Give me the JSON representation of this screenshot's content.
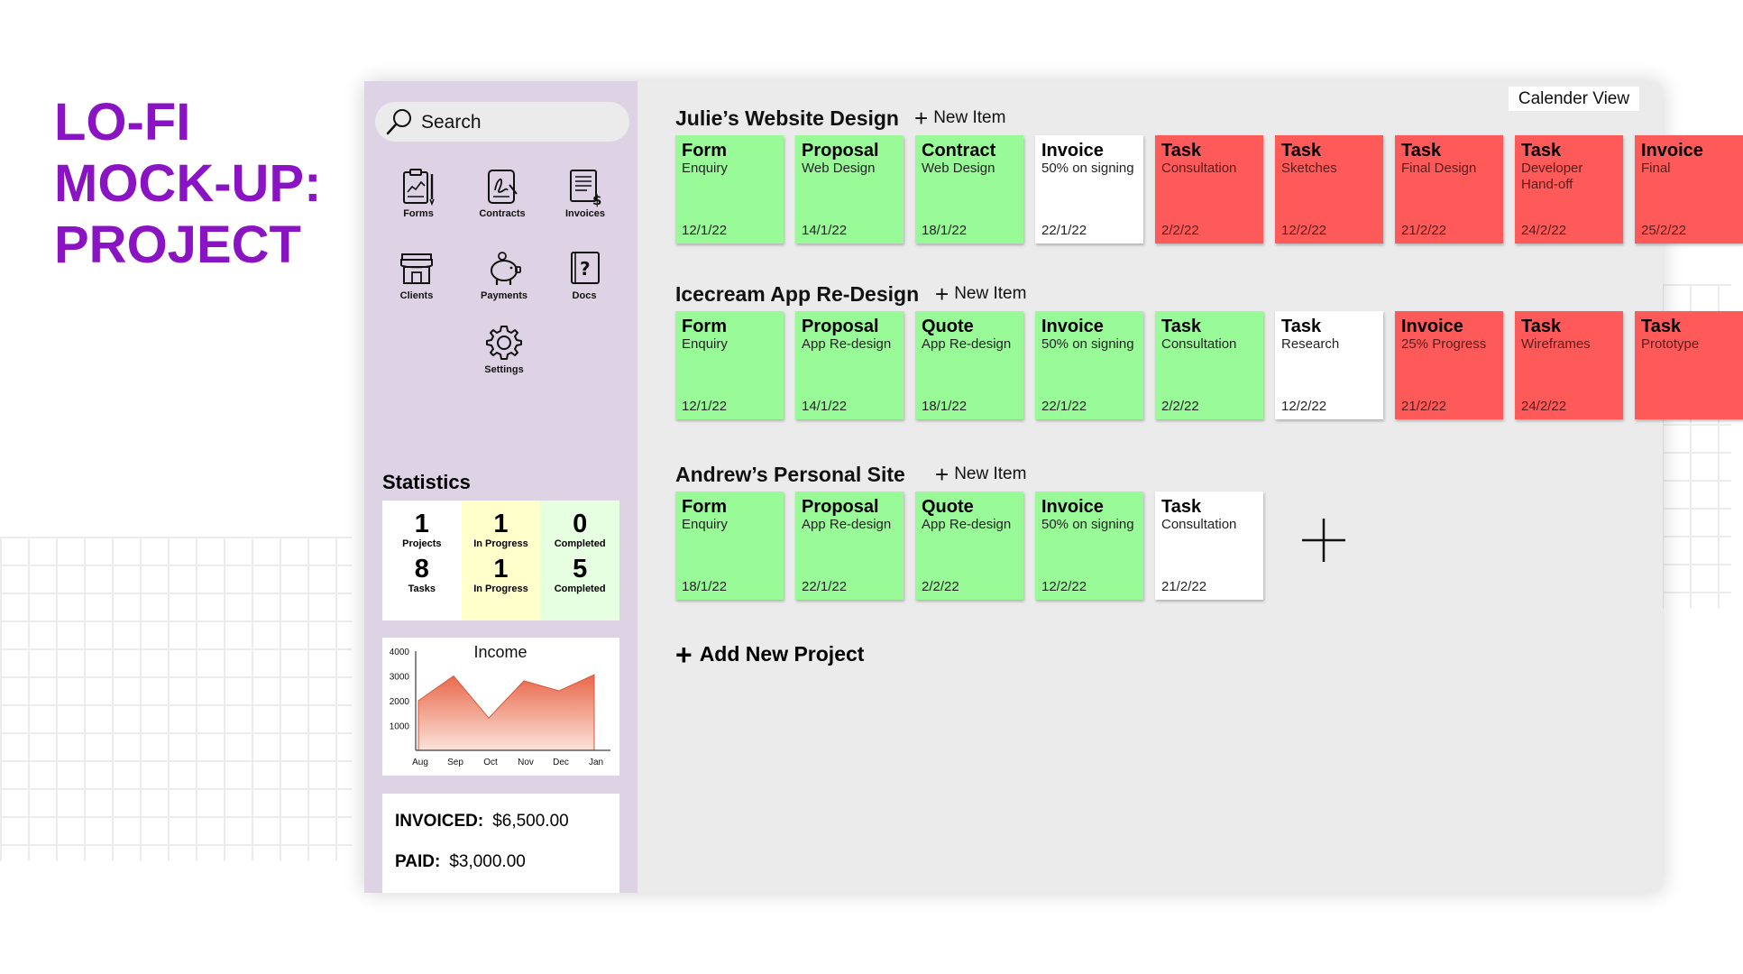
{
  "hero": {
    "line1": "LO-FI",
    "line2": "MOCK-UP:",
    "line3": "PROJECT"
  },
  "colors": {
    "brand": "#8a13c4",
    "sidebar": "#ddd3e5",
    "done": "#98fb98",
    "late": "#ff5a5a",
    "pending": "#ffffff"
  },
  "search": {
    "placeholder": "Search"
  },
  "nav": {
    "forms": "Forms",
    "contracts": "Contracts",
    "invoices": "Invoices",
    "clients": "Clients",
    "payments": "Payments",
    "docs": "Docs",
    "settings": "Settings"
  },
  "stats": {
    "title": "Statistics",
    "projects": {
      "value": "1",
      "label": "Projects"
    },
    "projects_in_progress": {
      "value": "1",
      "label": "In Progress"
    },
    "projects_completed": {
      "value": "0",
      "label": "Completed"
    },
    "tasks": {
      "value": "8",
      "label": "Tasks"
    },
    "tasks_in_progress": {
      "value": "1",
      "label": "In Progress"
    },
    "tasks_completed": {
      "value": "5",
      "label": "Completed"
    }
  },
  "chart_data": {
    "type": "area",
    "title": "Income",
    "categories": [
      "Aug",
      "Sep",
      "Oct",
      "Nov",
      "Dec",
      "Jan"
    ],
    "values": [
      2000,
      3000,
      1300,
      2800,
      2400,
      3050
    ],
    "yticks": [
      "4000",
      "3000",
      "2000",
      "1000"
    ],
    "ylim": [
      0,
      4000
    ],
    "xlabel": "",
    "ylabel": ""
  },
  "money": {
    "invoiced_label": "INVOICED:",
    "invoiced_value": "$6,500.00",
    "paid_label": "PAID:",
    "paid_value": "$3,000.00"
  },
  "calendar_view": "Calender View",
  "new_item_label": "New Item",
  "add_project_label": "Add New Project",
  "projects": [
    {
      "title": "Julie’s Website Design",
      "cards": [
        {
          "title": "Form",
          "sub": "Enquiry",
          "date": "12/1/22",
          "status": "green"
        },
        {
          "title": "Proposal",
          "sub": "Web Design",
          "date": "14/1/22",
          "status": "green"
        },
        {
          "title": "Contract",
          "sub": "Web Design",
          "date": "18/1/22",
          "status": "green"
        },
        {
          "title": "Invoice",
          "sub": "50% on signing",
          "date": "22/1/22",
          "status": "white"
        },
        {
          "title": "Task",
          "sub": "Consultation",
          "date": "2/2/22",
          "status": "red"
        },
        {
          "title": "Task",
          "sub": "Sketches",
          "date": "12/2/22",
          "status": "red"
        },
        {
          "title": "Task",
          "sub": "Final Design",
          "date": "21/2/22",
          "status": "red"
        },
        {
          "title": "Task",
          "sub": "Developer\nHand-off",
          "date": "24/2/22",
          "status": "red"
        },
        {
          "title": "Invoice",
          "sub": "Final",
          "date": "25/2/22",
          "status": "red"
        }
      ]
    },
    {
      "title": "Icecream App Re-Design",
      "cards": [
        {
          "title": "Form",
          "sub": "Enquiry",
          "date": "12/1/22",
          "status": "green"
        },
        {
          "title": "Proposal",
          "sub": "App Re-design",
          "date": "14/1/22",
          "status": "green"
        },
        {
          "title": "Quote",
          "sub": "App Re-design",
          "date": "18/1/22",
          "status": "green"
        },
        {
          "title": "Invoice",
          "sub": "50% on signing",
          "date": "22/1/22",
          "status": "green"
        },
        {
          "title": "Task",
          "sub": "Consultation",
          "date": "2/2/22",
          "status": "green"
        },
        {
          "title": "Task",
          "sub": "Research",
          "date": "12/2/22",
          "status": "white"
        },
        {
          "title": "Invoice",
          "sub": "25% Progress",
          "date": "21/2/22",
          "status": "red"
        },
        {
          "title": "Task",
          "sub": "Wireframes",
          "date": "24/2/22",
          "status": "red"
        },
        {
          "title": "Task",
          "sub": "Prototype",
          "date": "",
          "status": "red"
        }
      ]
    },
    {
      "title": "Andrew’s Personal Site",
      "cards": [
        {
          "title": "Form",
          "sub": "Enquiry",
          "date": "18/1/22",
          "status": "green"
        },
        {
          "title": "Proposal",
          "sub": "App Re-design",
          "date": "22/1/22",
          "status": "green"
        },
        {
          "title": "Quote",
          "sub": "App Re-design",
          "date": "2/2/22",
          "status": "green"
        },
        {
          "title": "Invoice",
          "sub": "50% on signing",
          "date": "12/2/22",
          "status": "green"
        },
        {
          "title": "Task",
          "sub": "Consultation",
          "date": "21/2/22",
          "status": "white"
        }
      ]
    }
  ]
}
